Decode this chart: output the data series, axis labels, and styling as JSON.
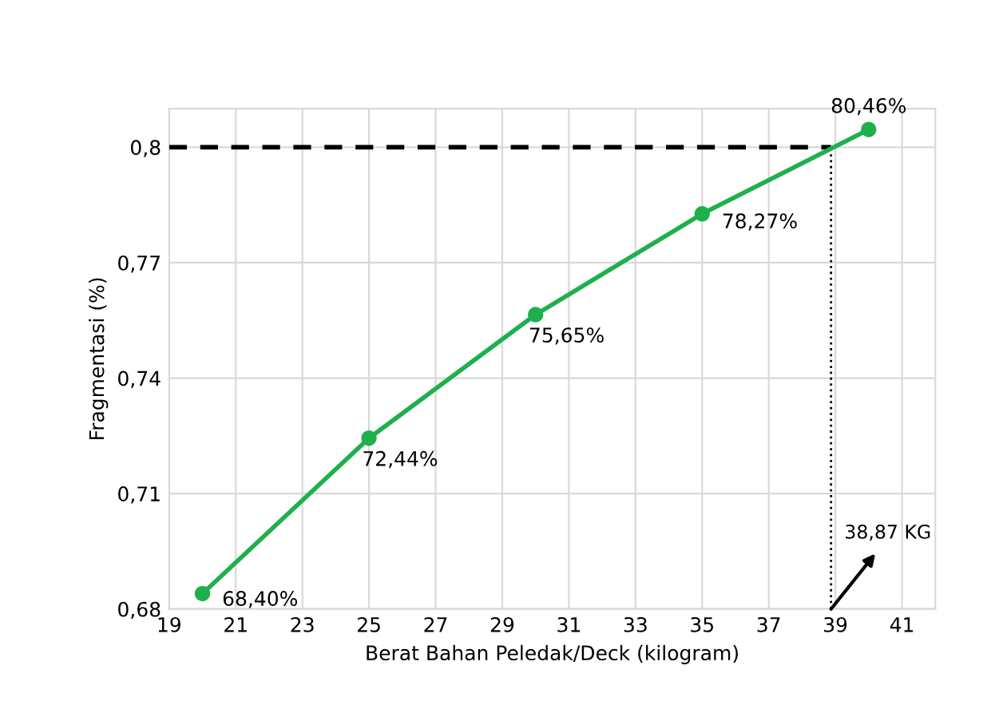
{
  "chart_data": {
    "type": "line",
    "xlabel": "Berat Bahan Peledak/Deck (kilogram)",
    "ylabel": "Fragmentasi (%)",
    "x": [
      20,
      25,
      30,
      35,
      40
    ],
    "series": [
      {
        "color": "#1fb04c",
        "values": [
          0.684,
          0.7244,
          0.7565,
          0.7827,
          0.8046
        ],
        "value_labels": [
          "68,40%",
          "72,44%",
          "75,65%",
          "78,27%",
          "80,46%"
        ]
      }
    ],
    "xlim": [
      19,
      42
    ],
    "ylim": [
      0.68,
      0.81
    ],
    "xticks": [
      19,
      21,
      23,
      25,
      27,
      29,
      31,
      33,
      35,
      37,
      39,
      41
    ],
    "yticks": [
      {
        "value": 0.68,
        "label": "0,68"
      },
      {
        "value": 0.71,
        "label": "0,71"
      },
      {
        "value": 0.74,
        "label": "0,74"
      },
      {
        "value": 0.77,
        "label": "0,77"
      },
      {
        "value": 0.8,
        "label": "0,8"
      }
    ],
    "ref_lines": [
      {
        "axis": "y",
        "value": 0.8,
        "color": "#000000",
        "line_style": "dashed"
      },
      {
        "axis": "x",
        "value": 38.87,
        "color": "#000000",
        "line_style": "dotted"
      }
    ],
    "annotations": [
      {
        "text": "38,87 KG",
        "x": 38.87,
        "y": 0.68
      }
    ],
    "grid": true,
    "marker": "circle",
    "line_style": "solid"
  }
}
